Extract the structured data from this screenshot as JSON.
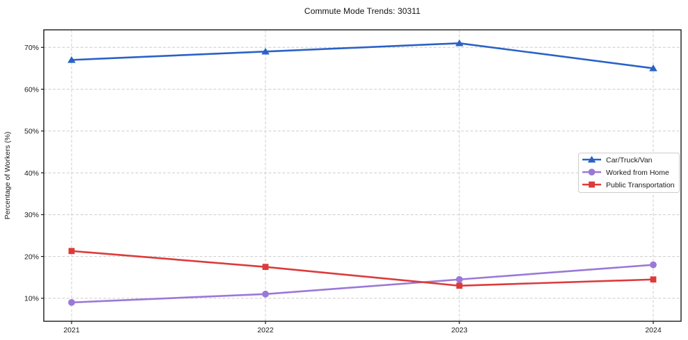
{
  "chart_data": {
    "type": "line",
    "title": "Commute Mode Trends: 30311",
    "xlabel": "",
    "ylabel": "Percentage of Workers (%)",
    "categories": [
      "2021",
      "2022",
      "2023",
      "2024"
    ],
    "series": [
      {
        "name": "Car/Truck/Van",
        "values": [
          67,
          69,
          71,
          65
        ],
        "color": "#2a62c6",
        "marker": "triangle"
      },
      {
        "name": "Worked from Home",
        "values": [
          9,
          11,
          14.5,
          18
        ],
        "color": "#9a78d8",
        "marker": "circle"
      },
      {
        "name": "Public Transportation",
        "values": [
          21.3,
          17.5,
          13,
          14.5
        ],
        "color": "#dc3b3b",
        "marker": "square"
      }
    ],
    "yticks": [
      10,
      20,
      30,
      40,
      50,
      60,
      70
    ],
    "ytick_suffix": "%",
    "ylim": [
      4.5,
      74.2
    ],
    "grid": true,
    "grid_color": "#cccccc",
    "axis_color": "#1a1a1a",
    "legend_position": "center-right"
  }
}
